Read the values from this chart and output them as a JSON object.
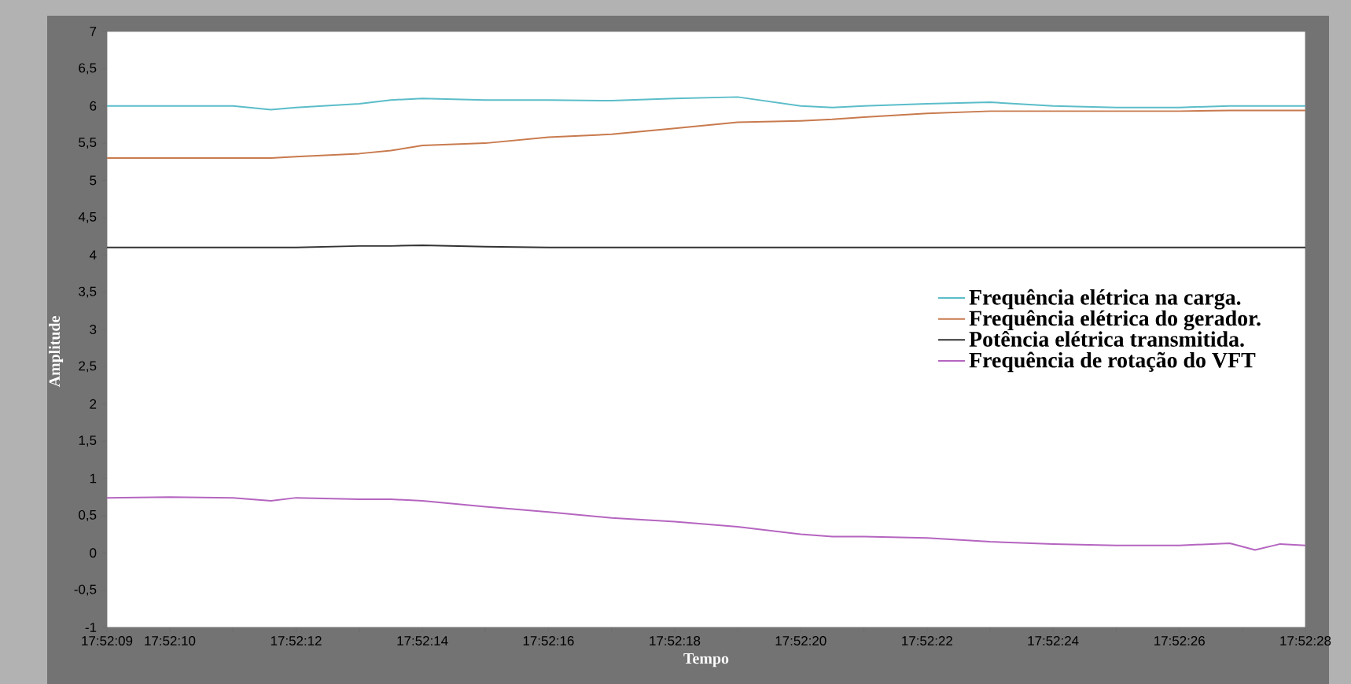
{
  "chart_data": {
    "type": "line",
    "xlabel": "Tempo",
    "ylabel": "Amplitude",
    "x": [
      17.869167,
      17.869444,
      17.869722,
      17.869889,
      17.87,
      17.870278,
      17.870417,
      17.870556,
      17.870833,
      17.871111,
      17.871389,
      17.871667,
      17.871944,
      17.872222,
      17.872361,
      17.8725,
      17.872778,
      17.873056,
      17.873333,
      17.873611,
      17.873889,
      17.874111,
      17.874222,
      17.874333,
      17.874444
    ],
    "series": [
      {
        "name": "Frequência elétrica na carga.",
        "color": "#5bbdc9",
        "values": [
          6.0,
          6.0,
          6.0,
          5.95,
          5.98,
          6.03,
          6.08,
          6.1,
          6.08,
          6.08,
          6.07,
          6.1,
          6.12,
          6.0,
          5.98,
          6.0,
          6.03,
          6.05,
          6.0,
          5.98,
          5.98,
          6.0,
          6.0,
          6.0,
          6.0
        ]
      },
      {
        "name": "Frequência elétrica do gerador.",
        "color": "#c87a4e",
        "values": [
          5.3,
          5.3,
          5.3,
          5.3,
          5.32,
          5.36,
          5.4,
          5.47,
          5.5,
          5.58,
          5.62,
          5.7,
          5.78,
          5.8,
          5.82,
          5.85,
          5.9,
          5.93,
          5.93,
          5.93,
          5.93,
          5.94,
          5.94,
          5.94,
          5.94
        ]
      },
      {
        "name": "Potência elétrica transmitida.",
        "color": "#333333",
        "values": [
          4.1,
          4.1,
          4.1,
          4.1,
          4.1,
          4.12,
          4.12,
          4.13,
          4.11,
          4.1,
          4.1,
          4.1,
          4.1,
          4.1,
          4.1,
          4.1,
          4.1,
          4.1,
          4.1,
          4.1,
          4.1,
          4.1,
          4.1,
          4.1,
          4.1
        ]
      },
      {
        "name": "Frequência de rotação do VFT",
        "color": "#b565c0",
        "values": [
          0.74,
          0.75,
          0.74,
          0.7,
          0.74,
          0.72,
          0.72,
          0.7,
          0.62,
          0.55,
          0.47,
          0.42,
          0.35,
          0.25,
          0.22,
          0.22,
          0.2,
          0.15,
          0.12,
          0.1,
          0.1,
          0.13,
          0.04,
          0.12,
          0.1
        ]
      }
    ],
    "xlim": [
      17.869167,
      17.874444
    ],
    "xticks": [
      {
        "value": 17.869167,
        "label": "17:52:09"
      },
      {
        "value": 17.869444,
        "label": "17:52:10"
      },
      {
        "value": 17.869722,
        "label": null
      },
      {
        "value": 17.87,
        "label": "17:52:12"
      },
      {
        "value": 17.870278,
        "label": null
      },
      {
        "value": 17.870556,
        "label": "17:52:14"
      },
      {
        "value": 17.870833,
        "label": null
      },
      {
        "value": 17.871111,
        "label": "17:52:16"
      },
      {
        "value": 17.871389,
        "label": null
      },
      {
        "value": 17.871667,
        "label": "17:52:18"
      },
      {
        "value": 17.871944,
        "label": null
      },
      {
        "value": 17.872222,
        "label": "17:52:20"
      },
      {
        "value": 17.8725,
        "label": null
      },
      {
        "value": 17.872778,
        "label": "17:52:22"
      },
      {
        "value": 17.873056,
        "label": null
      },
      {
        "value": 17.873333,
        "label": "17:52:24"
      },
      {
        "value": 17.873611,
        "label": null
      },
      {
        "value": 17.873889,
        "label": "17:52:26"
      },
      {
        "value": 17.874167,
        "label": null
      },
      {
        "value": 17.874444,
        "label": "17:52:28"
      }
    ],
    "ylim": [
      -1,
      7
    ],
    "yticks": [
      -1,
      {
        "value": -0.5,
        "label": "-0,5"
      },
      0,
      {
        "value": 0.5,
        "label": "0,5"
      },
      1,
      {
        "value": 1.5,
        "label": "1,5"
      },
      2,
      {
        "value": 2.5,
        "label": "2,5"
      },
      3,
      {
        "value": 3.5,
        "label": "3,5"
      },
      4,
      {
        "value": 4.5,
        "label": "4,5"
      },
      5,
      {
        "value": 5.5,
        "label": "5,5"
      },
      6,
      {
        "value": 6.5,
        "label": "6,5"
      },
      7
    ],
    "legend": "right",
    "marker": "none",
    "line_style": "solid"
  }
}
